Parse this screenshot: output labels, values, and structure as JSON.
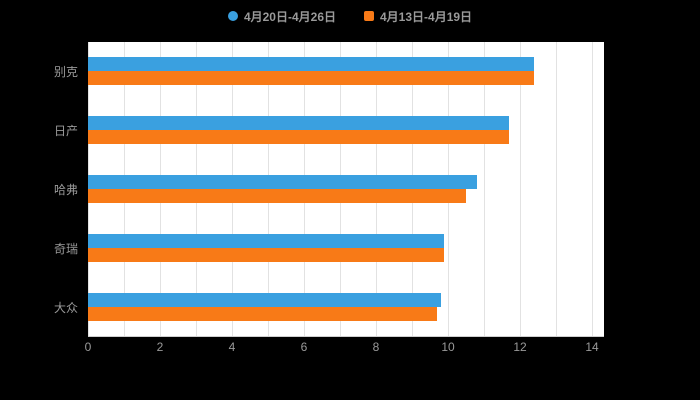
{
  "legend": {
    "items": [
      {
        "label": "4月20日-4月26日",
        "color": "#3AA0E0",
        "shape": "circle"
      },
      {
        "label": "4月13日-4月19日",
        "color": "#F87A17",
        "shape": "square"
      }
    ]
  },
  "chart_data": {
    "type": "bar",
    "orientation": "horizontal",
    "title": "",
    "xlabel": "",
    "ylabel": "",
    "categories": [
      "别克",
      "日产",
      "哈弗",
      "奇瑞",
      "大众"
    ],
    "series": [
      {
        "name": "4月20日-4月26日",
        "color": "#3AA0E0",
        "values": [
          12.4,
          11.7,
          10.8,
          9.9,
          9.8
        ]
      },
      {
        "name": "4月13日-4月19日",
        "color": "#F87A17",
        "values": [
          12.4,
          11.7,
          10.5,
          9.9,
          9.7
        ]
      }
    ],
    "xlim": [
      0,
      14
    ],
    "x_ticks": [
      0,
      2,
      4,
      6,
      8,
      10,
      12,
      14
    ],
    "grid_step": 1,
    "grid": true,
    "legend_position": "top"
  },
  "colors": {
    "background": "#000000",
    "plot_background": "#ffffff",
    "gridline": "#e2e2e2",
    "text": "#9a9a9a"
  }
}
